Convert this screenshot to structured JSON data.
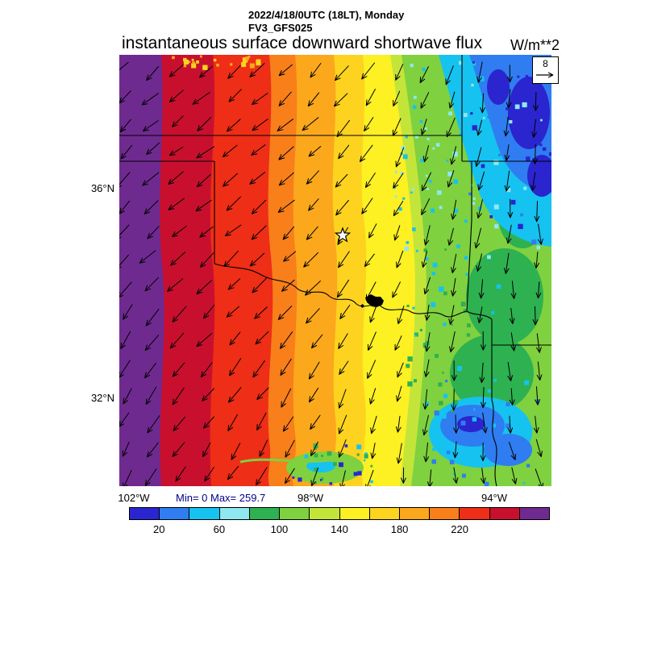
{
  "header": {
    "datetime": "2022/4/18/0UTC (18LT), Monday",
    "model": "FV3_GFS025",
    "title": "instantaneous surface downward shortwave flux",
    "units": "W/m**2"
  },
  "map": {
    "lat_ticks": [
      "36°N",
      "32°N"
    ],
    "lon_ticks": [
      "102°W",
      "98°W",
      "94°W"
    ],
    "stats": "Min= 0 Max= 259.7",
    "reference_vector": {
      "value": "8"
    }
  },
  "palette": {
    "blue_dark": "#2a25cf",
    "blue": "#2f7df0",
    "cyan": "#16c2f0",
    "cyan_pale": "#8fe8ef",
    "green_deep": "#2eb150",
    "green_light": "#7fd13f",
    "yellow_green": "#c3e53a",
    "yellow": "#fdf023",
    "gold": "#fdd31f",
    "orange": "#fba81c",
    "orange_dark": "#f87f1a",
    "red": "#ee2e16",
    "red_dark": "#c8102e",
    "purple": "#6f2a90",
    "border": "#000000",
    "minmax_text": "#00008b"
  },
  "colorbar": {
    "colors": [
      "#2a25cf",
      "#2f7df0",
      "#16c2f0",
      "#8fe8ef",
      "#2eb150",
      "#7fd13f",
      "#c3e53a",
      "#fdf023",
      "#fdd31f",
      "#fba81c",
      "#f87f1a",
      "#ee2e16",
      "#c8102e",
      "#6f2a90"
    ],
    "tick_labels": [
      "20",
      "60",
      "100",
      "140",
      "180",
      "220"
    ]
  },
  "chart_data": {
    "type": "heatmap",
    "title": "instantaneous surface downward shortwave flux",
    "units": "W/m**2",
    "valid_time": "2022/4/18/0UTC (18LT), Monday",
    "model": "FV3_GFS025",
    "region": "Oklahoma and North Texas, approx 102W-93W / 30.5N-38.5N",
    "min": 0,
    "max": 259.7,
    "contour_interval": 20,
    "colorbar_range": [
      0,
      280
    ],
    "colorbar_ticks": [
      20,
      60,
      100,
      140,
      180,
      220
    ],
    "x_axis": {
      "label_type": "longitude",
      "ticks": [
        "102°W",
        "98°W",
        "94°W"
      ]
    },
    "y_axis": {
      "label_type": "latitude",
      "ticks": [
        "36°N",
        "32°N"
      ]
    },
    "wind_reference_m_s": 8,
    "wind_pattern": "northerly wind vectors ~8 m/s over whole domain, leaning southwest on the west side",
    "value_bands_west_to_east": [
      {
        "approx_lon": "102.0W",
        "value_range": "240-260",
        "color": "purple"
      },
      {
        "approx_lon": "101.2W",
        "value_range": "220-240",
        "color": "dark red"
      },
      {
        "approx_lon": "100.0W",
        "value_range": "220",
        "color": "red"
      },
      {
        "approx_lon": "98.8W",
        "value_range": "180-220",
        "color": "orange"
      },
      {
        "approx_lon": "97.5W",
        "value_range": "140-180",
        "color": "yellow"
      },
      {
        "approx_lon": "95.5W",
        "value_range": "80-140",
        "color": "green patches"
      },
      {
        "approx_lon": "94.5W",
        "value_range": "40-80",
        "color": "cyan"
      },
      {
        "approx_lon": "93.5W northeast",
        "value_range": "0-40",
        "color": "blue"
      }
    ],
    "markers": [
      "open star near 97.3W 35.1N",
      "black lake polygon on Red River near 96.7W 33.9N"
    ]
  }
}
